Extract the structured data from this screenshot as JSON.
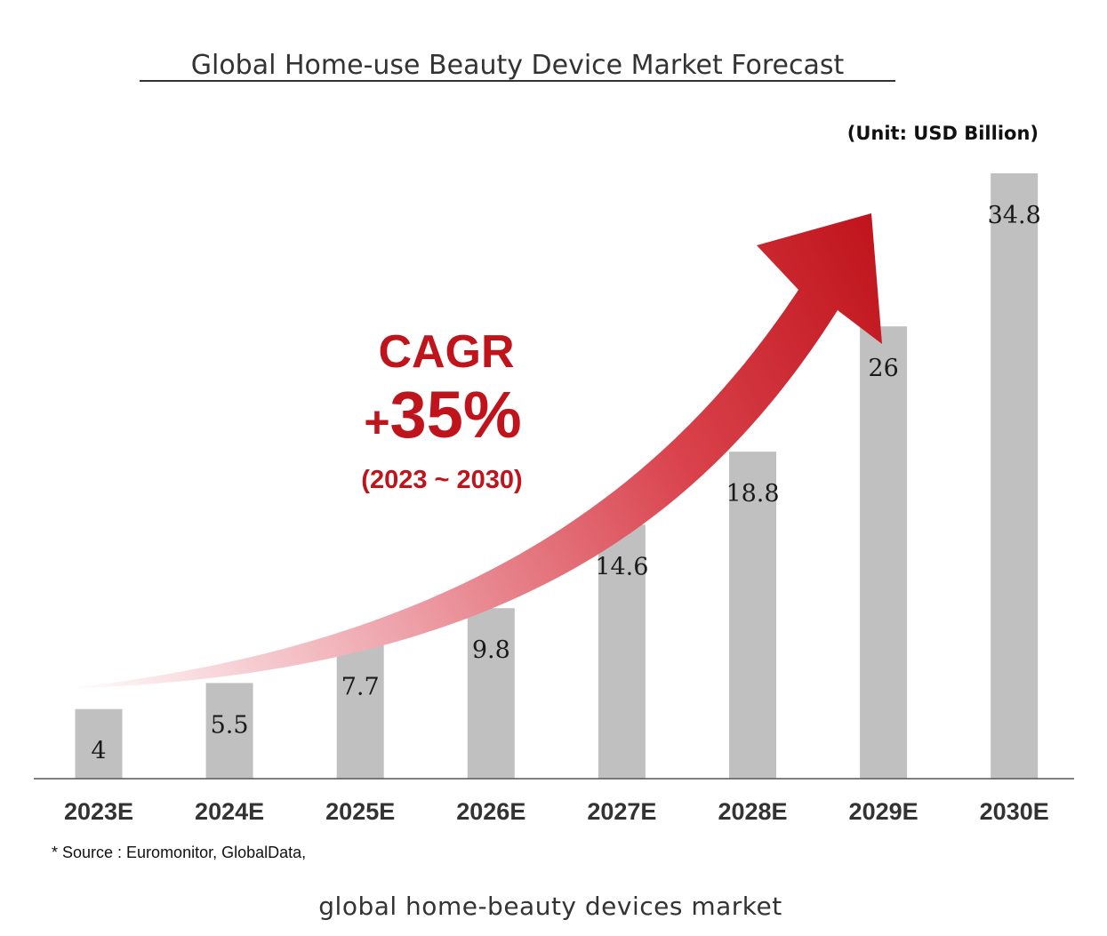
{
  "chart_data": {
    "type": "bar",
    "title": "Global Home-use Beauty Device Market Forecast",
    "unit_label": "(Unit: USD Billion)",
    "categories": [
      "2023E",
      "2024E",
      "2025E",
      "2026E",
      "2027E",
      "2028E",
      "2029E",
      "2030E"
    ],
    "values": [
      4,
      5.5,
      7.7,
      9.8,
      14.6,
      18.8,
      26,
      34.8
    ],
    "value_labels": [
      "4",
      "5.5",
      "7.7",
      "9.8",
      "14.6",
      "18.8",
      "26",
      "34.8"
    ],
    "ylim": [
      0,
      35
    ],
    "grid": false,
    "xlabel": "",
    "ylabel": "",
    "annotation": {
      "line1": "CAGR",
      "plus": "+",
      "rate": "35%",
      "period": "(2023 ~ 2030)"
    },
    "source": "* Source : Euromonitor, GlobalData,"
  },
  "caption": "global home-beauty devices market",
  "colors": {
    "bar": "#c0c0c0",
    "accent": "#c0141c",
    "text": "#333333",
    "axis": "#555555"
  }
}
